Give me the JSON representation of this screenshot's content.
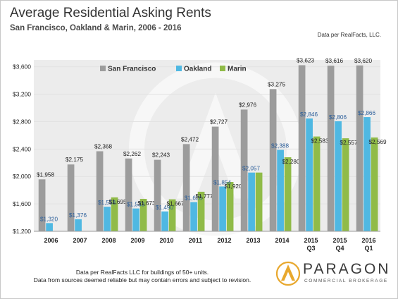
{
  "header": {
    "title": "Average Residential Asking Rents",
    "subtitle": "San Francisco, Oakland & Marin, 2006 - 2016",
    "source_top": "Data per RealFacts, LLC."
  },
  "footer": {
    "note_line1": "Data per RealFacts LLC for buildings of 50+ units.",
    "note_line2": "Data from sources deemed reliable but may contain errors and subject to revision.",
    "logo_name": "PARAGON",
    "logo_tagline": "COMMERCIAL BROKERAGE"
  },
  "colors": {
    "san_francisco": "#9c9c9c",
    "oakland": "#4fb8e2",
    "marin": "#90bb48",
    "sf_label": "#222222",
    "oakland_label": "#2b5e9a",
    "marin_label": "#222222",
    "grid": "#e2e2e2",
    "background": "#ececec"
  },
  "chart_data": {
    "type": "bar",
    "title": "Average Residential Asking Rents",
    "subtitle": "San Francisco, Oakland & Marin, 2006 - 2016",
    "categories": [
      [
        "2006"
      ],
      [
        "2007"
      ],
      [
        "2008"
      ],
      [
        "2009"
      ],
      [
        "2010"
      ],
      [
        "2011"
      ],
      [
        "2012"
      ],
      [
        "2013"
      ],
      [
        "2014"
      ],
      [
        "2015",
        "Q3"
      ],
      [
        "2015",
        "Q4"
      ],
      [
        "2016",
        "Q1"
      ]
    ],
    "series": [
      {
        "name": "San Francisco",
        "values": [
          1958,
          2175,
          2368,
          2262,
          2243,
          2472,
          2727,
          2976,
          3275,
          3623,
          3616,
          3620
        ],
        "labels": [
          "$1,958",
          "$2,175",
          "$2,368",
          "$2,262",
          "$2,243",
          "$2,472",
          "$2,727",
          "$2,976",
          "$3,275",
          "$3,623",
          "$3,616",
          "$3,620"
        ]
      },
      {
        "name": "Oakland",
        "values": [
          1320,
          1376,
          1558,
          1533,
          1490,
          1626,
          1854,
          2057,
          2388,
          2846,
          2806,
          2866
        ],
        "labels": [
          "$1,320",
          "$1,376",
          "$1,558",
          "$1,533",
          "$1,490",
          "$1,626",
          "$1,854",
          "$2,057",
          "$2,388",
          "$2,846",
          "$2,806",
          "$2,866"
        ]
      },
      {
        "name": "Marin",
        "values": [
          null,
          null,
          1695,
          1673,
          1667,
          1777,
          1920,
          2057,
          2280,
          2583,
          2557,
          2569
        ],
        "labels": [
          "",
          "",
          "$1,695",
          "$1,673",
          "$1,667",
          "$1,777",
          "$1,920",
          "",
          "$2,280",
          "$2,583",
          "$2,557",
          "$2,569"
        ]
      }
    ],
    "ylim": [
      1200,
      3700
    ],
    "yticks": [
      1200,
      1600,
      2000,
      2400,
      2800,
      3200,
      3600
    ],
    "ytick_labels": [
      "$1,200",
      "$1,600",
      "$2,000",
      "$2,400",
      "$2,800",
      "$3,200",
      "$3,600"
    ],
    "grid": true,
    "legend": "top-left"
  }
}
